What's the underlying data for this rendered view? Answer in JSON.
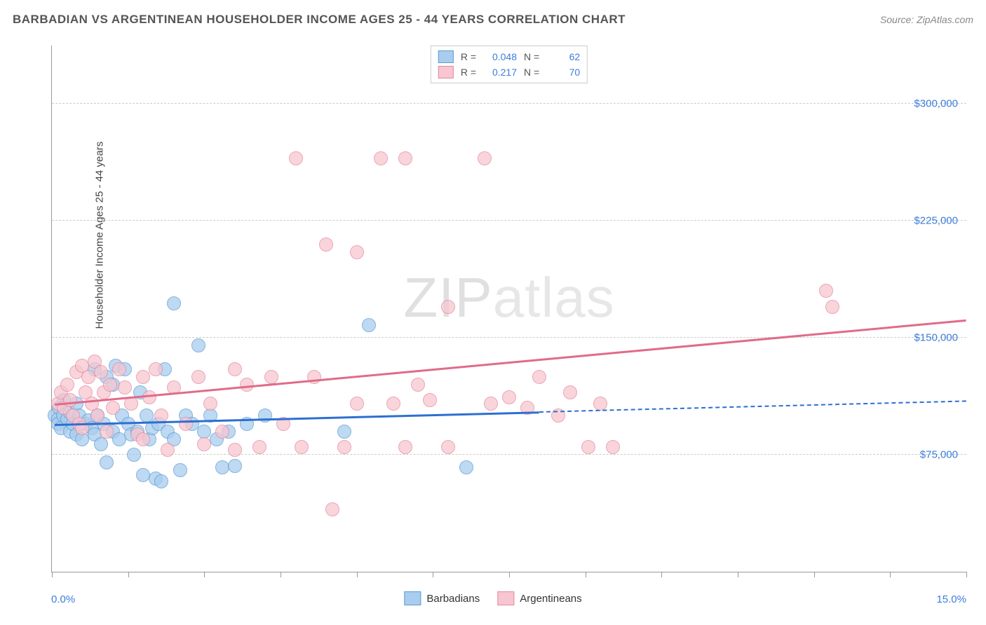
{
  "header": {
    "title": "BARBADIAN VS ARGENTINEAN HOUSEHOLDER INCOME AGES 25 - 44 YEARS CORRELATION CHART",
    "source": "Source: ZipAtlas.com"
  },
  "watermark": "ZIPatlas",
  "chart": {
    "type": "scatter",
    "ylabel": "Householder Income Ages 25 - 44 years",
    "xlim": [
      0,
      15
    ],
    "ylim": [
      0,
      337500
    ],
    "x_ticks_pct": [
      0,
      1.25,
      2.5,
      3.75,
      5.0,
      6.25,
      7.5,
      8.75,
      10.0,
      11.25,
      12.5,
      13.75,
      15.0
    ],
    "y_gridlines": [
      {
        "value": 75000,
        "label": "$75,000"
      },
      {
        "value": 150000,
        "label": "$150,000"
      },
      {
        "value": 225000,
        "label": "$225,000"
      },
      {
        "value": 300000,
        "label": "$300,000"
      }
    ],
    "x_axis_label_left": "0.0%",
    "x_axis_label_right": "15.0%",
    "grid_color": "#cccccc",
    "axis_color": "#999999",
    "tick_label_color": "#3b7dd8",
    "background_color": "#ffffff"
  },
  "series": [
    {
      "name": "Barbadians",
      "fill": "#a9cdee",
      "stroke": "#5c9bd5",
      "line_color": "#2d6fd1",
      "R": "0.048",
      "N": "62",
      "trend": {
        "x1": 0.05,
        "y1": 95000,
        "x2": 8.0,
        "y2": 103000,
        "dash_to_x": 15.0,
        "dash_to_y": 110000
      },
      "points": [
        [
          0.05,
          100000
        ],
        [
          0.1,
          98000
        ],
        [
          0.1,
          95000
        ],
        [
          0.12,
          105000
        ],
        [
          0.15,
          92000
        ],
        [
          0.18,
          100000
        ],
        [
          0.2,
          110000
        ],
        [
          0.25,
          98000
        ],
        [
          0.3,
          90000
        ],
        [
          0.3,
          102000
        ],
        [
          0.35,
          95000
        ],
        [
          0.4,
          108000
        ],
        [
          0.4,
          88000
        ],
        [
          0.45,
          100000
        ],
        [
          0.5,
          85000
        ],
        [
          0.55,
          95000
        ],
        [
          0.6,
          97000
        ],
        [
          0.65,
          92000
        ],
        [
          0.7,
          130000
        ],
        [
          0.7,
          88000
        ],
        [
          0.75,
          100000
        ],
        [
          0.8,
          82000
        ],
        [
          0.85,
          95000
        ],
        [
          0.9,
          125000
        ],
        [
          0.9,
          70000
        ],
        [
          1.0,
          120000
        ],
        [
          1.0,
          90000
        ],
        [
          1.05,
          132000
        ],
        [
          1.1,
          85000
        ],
        [
          1.15,
          100000
        ],
        [
          1.2,
          130000
        ],
        [
          1.25,
          95000
        ],
        [
          1.3,
          88000
        ],
        [
          1.35,
          75000
        ],
        [
          1.4,
          90000
        ],
        [
          1.45,
          115000
        ],
        [
          1.5,
          62000
        ],
        [
          1.55,
          100000
        ],
        [
          1.6,
          85000
        ],
        [
          1.65,
          92000
        ],
        [
          1.7,
          60000
        ],
        [
          1.75,
          95000
        ],
        [
          1.8,
          58000
        ],
        [
          1.85,
          130000
        ],
        [
          1.9,
          90000
        ],
        [
          2.0,
          172000
        ],
        [
          2.0,
          85000
        ],
        [
          2.1,
          65000
        ],
        [
          2.2,
          100000
        ],
        [
          2.3,
          95000
        ],
        [
          2.4,
          145000
        ],
        [
          2.5,
          90000
        ],
        [
          2.6,
          100000
        ],
        [
          2.7,
          85000
        ],
        [
          2.8,
          67000
        ],
        [
          2.9,
          90000
        ],
        [
          3.0,
          68000
        ],
        [
          3.2,
          95000
        ],
        [
          3.5,
          100000
        ],
        [
          5.2,
          158000
        ],
        [
          6.8,
          67000
        ],
        [
          4.8,
          90000
        ]
      ]
    },
    {
      "name": "Argentineans",
      "fill": "#f7c6d0",
      "stroke": "#e48aa0",
      "line_color": "#e06b8a",
      "R": "0.217",
      "N": "70",
      "trend": {
        "x1": 0.05,
        "y1": 108000,
        "x2": 15.0,
        "y2": 162000
      },
      "points": [
        [
          0.1,
          108000
        ],
        [
          0.15,
          115000
        ],
        [
          0.2,
          105000
        ],
        [
          0.25,
          120000
        ],
        [
          0.3,
          110000
        ],
        [
          0.35,
          100000
        ],
        [
          0.4,
          128000
        ],
        [
          0.45,
          95000
        ],
        [
          0.5,
          132000
        ],
        [
          0.55,
          115000
        ],
        [
          0.6,
          125000
        ],
        [
          0.65,
          108000
        ],
        [
          0.7,
          135000
        ],
        [
          0.75,
          100000
        ],
        [
          0.8,
          128000
        ],
        [
          0.85,
          115000
        ],
        [
          0.9,
          90000
        ],
        [
          0.95,
          120000
        ],
        [
          1.0,
          105000
        ],
        [
          1.1,
          130000
        ],
        [
          1.2,
          118000
        ],
        [
          1.3,
          108000
        ],
        [
          1.4,
          88000
        ],
        [
          1.5,
          125000
        ],
        [
          1.6,
          112000
        ],
        [
          1.7,
          130000
        ],
        [
          1.8,
          100000
        ],
        [
          1.9,
          78000
        ],
        [
          2.0,
          118000
        ],
        [
          2.2,
          95000
        ],
        [
          2.4,
          125000
        ],
        [
          2.6,
          108000
        ],
        [
          2.8,
          90000
        ],
        [
          3.0,
          78000
        ],
        [
          3.2,
          120000
        ],
        [
          3.4,
          80000
        ],
        [
          3.6,
          125000
        ],
        [
          3.8,
          95000
        ],
        [
          4.0,
          265000
        ],
        [
          4.1,
          80000
        ],
        [
          4.3,
          125000
        ],
        [
          4.5,
          210000
        ],
        [
          4.6,
          40000
        ],
        [
          4.8,
          80000
        ],
        [
          5.0,
          108000
        ],
        [
          5.0,
          205000
        ],
        [
          5.4,
          265000
        ],
        [
          5.6,
          108000
        ],
        [
          5.8,
          265000
        ],
        [
          5.8,
          80000
        ],
        [
          6.0,
          120000
        ],
        [
          6.2,
          110000
        ],
        [
          6.5,
          170000
        ],
        [
          6.5,
          80000
        ],
        [
          7.1,
          265000
        ],
        [
          7.2,
          108000
        ],
        [
          7.5,
          112000
        ],
        [
          7.8,
          105000
        ],
        [
          8.0,
          125000
        ],
        [
          8.3,
          100000
        ],
        [
          8.5,
          115000
        ],
        [
          8.8,
          80000
        ],
        [
          9.0,
          108000
        ],
        [
          9.2,
          80000
        ],
        [
          12.7,
          180000
        ],
        [
          12.8,
          170000
        ],
        [
          3.0,
          130000
        ],
        [
          2.5,
          82000
        ],
        [
          1.5,
          85000
        ],
        [
          0.5,
          92000
        ]
      ]
    }
  ],
  "legend_labels": {
    "r_prefix": "R =",
    "n_prefix": "N ="
  }
}
